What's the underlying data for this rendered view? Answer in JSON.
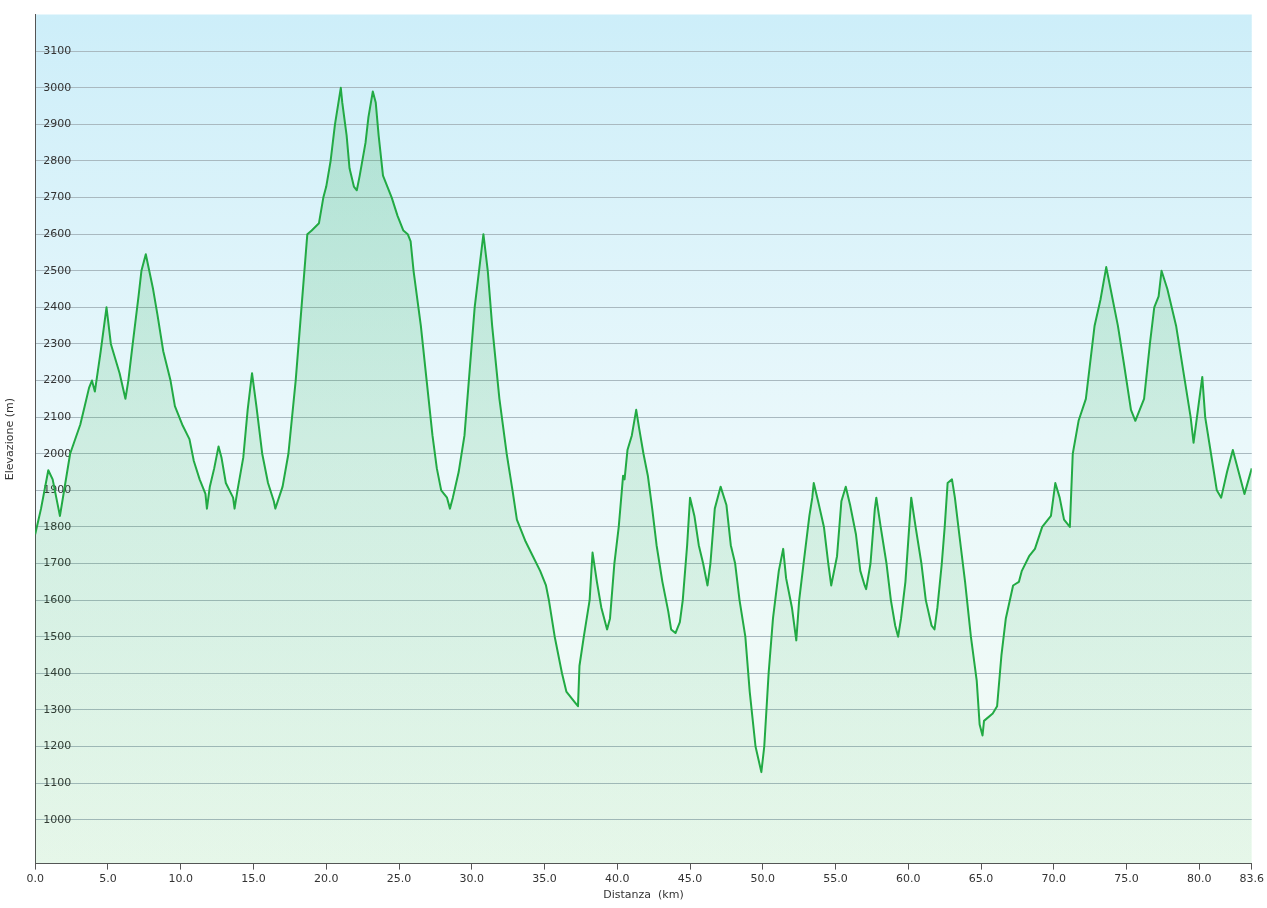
{
  "chart_data": {
    "type": "area",
    "xlabel": "Distanza  (km)",
    "ylabel": "Elevazione (m)",
    "grid": "y",
    "legend": false,
    "marker": "none",
    "line_style": "solid",
    "xlim": [
      0,
      83.6
    ],
    "ylim": [
      880,
      3200
    ],
    "xticks": [
      {
        "value": 0,
        "label": "0.0"
      },
      {
        "value": 5,
        "label": "5.0"
      },
      {
        "value": 10,
        "label": "10.0"
      },
      {
        "value": 15,
        "label": "15.0"
      },
      {
        "value": 20,
        "label": "20.0"
      },
      {
        "value": 25,
        "label": "25.0"
      },
      {
        "value": 30,
        "label": "30.0"
      },
      {
        "value": 35,
        "label": "35.0"
      },
      {
        "value": 40,
        "label": "40.0"
      },
      {
        "value": 45,
        "label": "45.0"
      },
      {
        "value": 50,
        "label": "50.0"
      },
      {
        "value": 55,
        "label": "55.0"
      },
      {
        "value": 60,
        "label": "60.0"
      },
      {
        "value": 65,
        "label": "65.0"
      },
      {
        "value": 70,
        "label": "70.0"
      },
      {
        "value": 75,
        "label": "75.0"
      },
      {
        "value": 80,
        "label": "80.0"
      },
      83.6
    ],
    "yticks": [
      1000,
      1100,
      1200,
      1300,
      1400,
      1500,
      1600,
      1700,
      1800,
      1900,
      2000,
      2100,
      2200,
      2300,
      2400,
      2500,
      2600,
      2700,
      2800,
      2900,
      3000,
      3100
    ],
    "series": [
      {
        "color": "#22aa44",
        "x": [
          0,
          0.4,
          0.9,
          1.2,
          1.6,
          1.7,
          2.4,
          3.1,
          3.4,
          3.7,
          3.9,
          4.1,
          4.5,
          4.9,
          5.2,
          5.8,
          6.2,
          6.4,
          6.7,
          7.1,
          7.3,
          7.6,
          8.1,
          8.4,
          8.8,
          9.3,
          9.6,
          10.1,
          10.6,
          10.9,
          11.3,
          11.7,
          11.8,
          12.0,
          12.3,
          12.6,
          12.8,
          13.1,
          13.6,
          13.7,
          13.9,
          14.3,
          14.6,
          14.9,
          15.2,
          15.6,
          16.0,
          16.4,
          16.5,
          17.0,
          17.4,
          17.9,
          18.3,
          18.7,
          19.0,
          19.5,
          19.8,
          20.0,
          20.3,
          20.6,
          21.0,
          21.1,
          21.4,
          21.6,
          21.9,
          22.1,
          22.3,
          22.7,
          22.9,
          23.2,
          23.4,
          23.6,
          23.9,
          24.2,
          24.5,
          24.9,
          25.3,
          25.6,
          25.8,
          26.0,
          26.5,
          26.9,
          27.3,
          27.6,
          27.9,
          28.3,
          28.5,
          28.7,
          29.1,
          29.5,
          29.8,
          30.2,
          30.8,
          31.1,
          31.4,
          31.9,
          32.4,
          32.8,
          33.1,
          33.7,
          34.2,
          34.7,
          35.1,
          35.3,
          35.7,
          36.2,
          36.5,
          37.1,
          37.3,
          37.4,
          37.7,
          38.1,
          38.3,
          38.6,
          38.9,
          39.3,
          39.5,
          39.8,
          40.1,
          40.4,
          40.5,
          40.7,
          41.0,
          41.3,
          41.5,
          41.8,
          42.1,
          42.4,
          42.7,
          43.1,
          43.5,
          43.7,
          44.0,
          44.3,
          44.5,
          44.8,
          45.0,
          45.3,
          45.6,
          45.9,
          46.2,
          46.4,
          46.7,
          47.1,
          47.5,
          47.8,
          48.1,
          48.4,
          48.8,
          49.1,
          49.5,
          49.9,
          50.1,
          50.4,
          50.7,
          51.1,
          51.4,
          51.6,
          52.0,
          52.3,
          52.5,
          52.8,
          53.2,
          53.4,
          53.5,
          53.8,
          54.2,
          54.5,
          54.7,
          55.1,
          55.4,
          55.7,
          56.0,
          56.4,
          56.7,
          57.0,
          57.1,
          57.4,
          57.7,
          57.8,
          58.1,
          58.5,
          58.8,
          59.1,
          59.3,
          59.5,
          59.8,
          60.2,
          60.5,
          60.9,
          61.2,
          61.6,
          61.8,
          62.0,
          62.3,
          62.5,
          62.7,
          63.0,
          63.2,
          63.5,
          63.9,
          64.3,
          64.7,
          64.9,
          65.1,
          65.2,
          65.8,
          66.1,
          66.4,
          66.7,
          67.2,
          67.6,
          67.8,
          68.3,
          68.7,
          69.2,
          69.8,
          70.1,
          70.4,
          70.7,
          71.1,
          71.3,
          71.7,
          72.2,
          72.8,
          73.2,
          73.6,
          73.9,
          74.4,
          74.8,
          75.3,
          75.6,
          76.2,
          76.6,
          76.9,
          77.2,
          77.4,
          77.8,
          78.4,
          79.0,
          79.4,
          79.6,
          79.9,
          80.2,
          80.4,
          80.8,
          81.2,
          81.5,
          81.9,
          82.3,
          82.7,
          83.1,
          83.6
        ],
        "values": [
          1780,
          1850,
          1955,
          1930,
          1850,
          1830,
          2000,
          2080,
          2130,
          2180,
          2200,
          2170,
          2280,
          2400,
          2300,
          2220,
          2150,
          2200,
          2300,
          2430,
          2500,
          2545,
          2450,
          2380,
          2280,
          2200,
          2130,
          2080,
          2040,
          1980,
          1930,
          1890,
          1850,
          1910,
          1960,
          2020,
          1990,
          1920,
          1880,
          1850,
          1900,
          1990,
          2120,
          2220,
          2130,
          2000,
          1920,
          1870,
          1850,
          1910,
          2000,
          2200,
          2400,
          2600,
          2610,
          2630,
          2700,
          2730,
          2800,
          2900,
          3000,
          2960,
          2870,
          2780,
          2730,
          2720,
          2760,
          2850,
          2920,
          2990,
          2960,
          2870,
          2760,
          2730,
          2700,
          2650,
          2610,
          2600,
          2580,
          2500,
          2350,
          2200,
          2050,
          1960,
          1900,
          1880,
          1850,
          1880,
          1950,
          2050,
          2200,
          2400,
          2600,
          2500,
          2350,
          2150,
          2000,
          1900,
          1820,
          1760,
          1720,
          1680,
          1640,
          1600,
          1500,
          1400,
          1350,
          1320,
          1310,
          1420,
          1500,
          1600,
          1730,
          1650,
          1580,
          1520,
          1550,
          1700,
          1800,
          1940,
          1930,
          2010,
          2050,
          2120,
          2070,
          2000,
          1940,
          1850,
          1750,
          1650,
          1570,
          1520,
          1510,
          1540,
          1600,
          1750,
          1880,
          1830,
          1750,
          1700,
          1640,
          1700,
          1850,
          1910,
          1860,
          1750,
          1700,
          1600,
          1500,
          1350,
          1200,
          1130,
          1200,
          1400,
          1550,
          1680,
          1740,
          1660,
          1580,
          1490,
          1600,
          1700,
          1830,
          1880,
          1920,
          1870,
          1800,
          1700,
          1640,
          1720,
          1870,
          1910,
          1860,
          1780,
          1680,
          1640,
          1630,
          1700,
          1850,
          1880,
          1800,
          1700,
          1600,
          1530,
          1500,
          1550,
          1650,
          1880,
          1800,
          1700,
          1600,
          1530,
          1520,
          1580,
          1700,
          1800,
          1920,
          1930,
          1880,
          1780,
          1650,
          1500,
          1380,
          1260,
          1230,
          1270,
          1290,
          1310,
          1450,
          1550,
          1640,
          1650,
          1680,
          1720,
          1740,
          1800,
          1830,
          1920,
          1880,
          1820,
          1800,
          2000,
          2090,
          2150,
          2350,
          2420,
          2510,
          2450,
          2350,
          2250,
          2120,
          2090,
          2150,
          2300,
          2400,
          2430,
          2500,
          2450,
          2350,
          2200,
          2100,
          2030,
          2120,
          2210,
          2100,
          2000,
          1900,
          1880,
          1950,
          2010,
          1950,
          1890,
          1960
        ]
      }
    ]
  }
}
